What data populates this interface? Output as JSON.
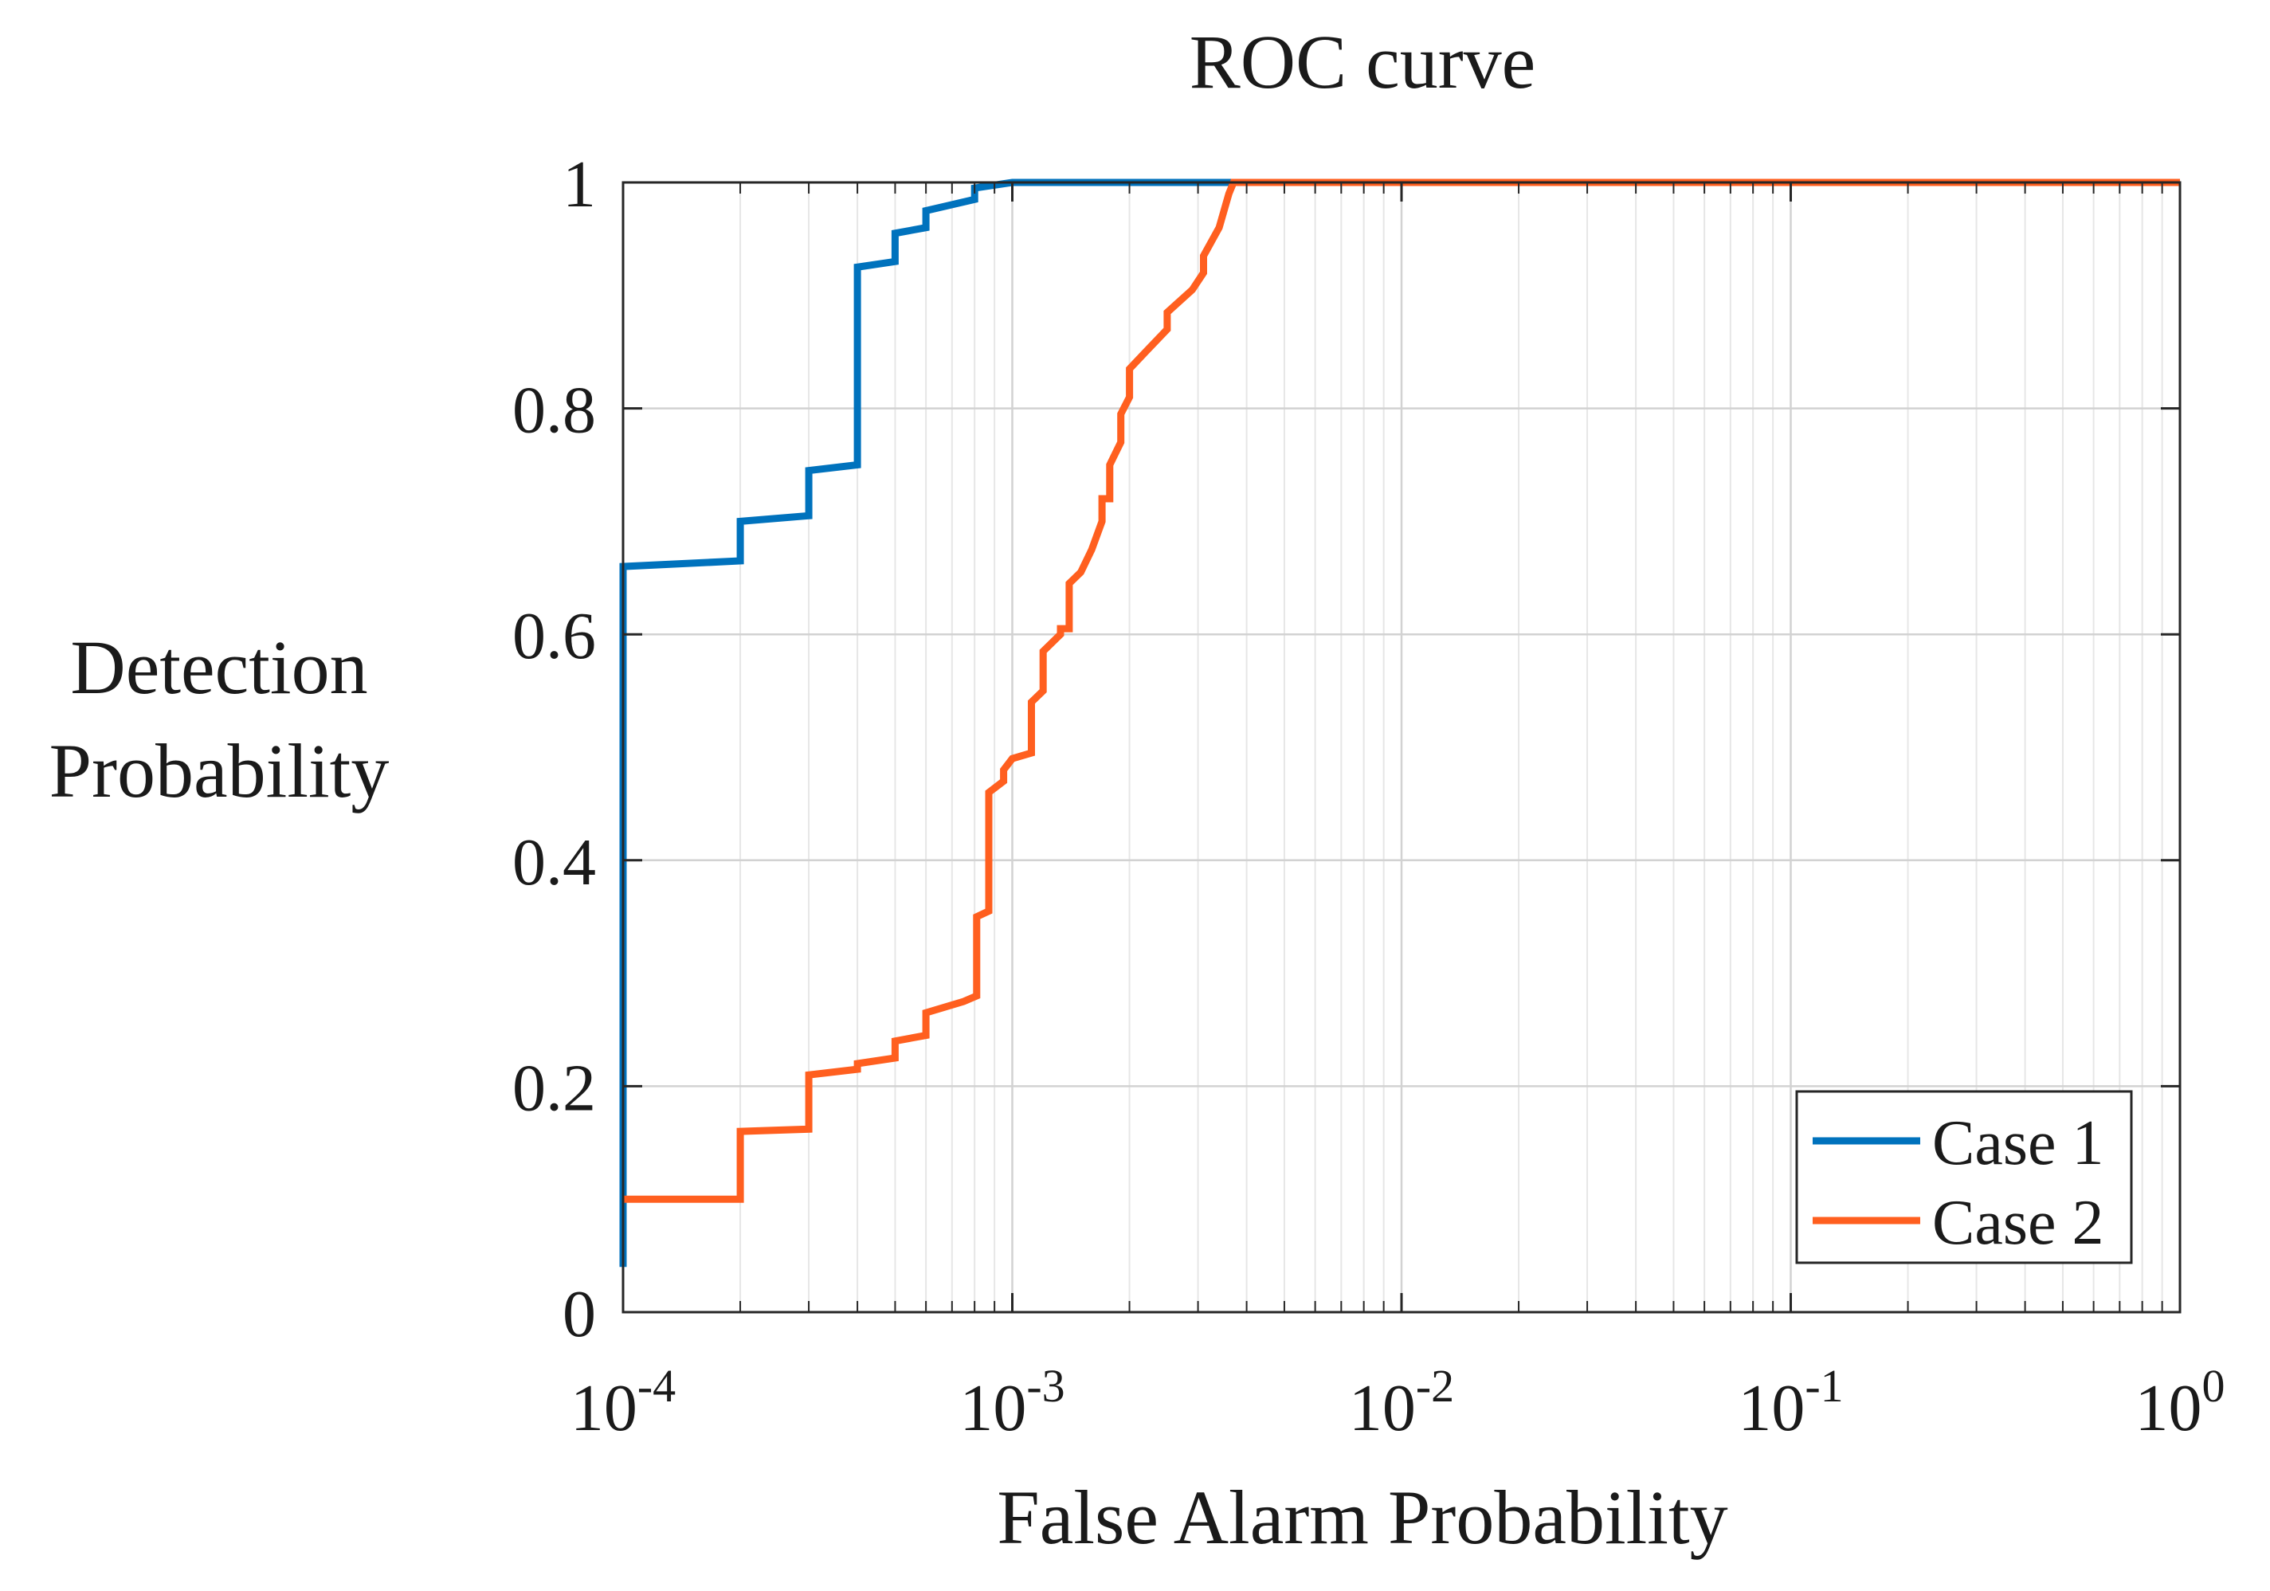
{
  "chart_data": {
    "type": "line",
    "title": "ROC curve",
    "xlabel": "False Alarm Probability",
    "ylabel": [
      "Detection",
      "Probability"
    ],
    "xscale": "log",
    "xlim": [
      0.0001,
      1
    ],
    "ylim": [
      0,
      1
    ],
    "grid": true,
    "legend_position": "bottom-right",
    "x_ticks": [
      {
        "value": 0.0001,
        "base": "10",
        "exp": "-4"
      },
      {
        "value": 0.001,
        "base": "10",
        "exp": "-3"
      },
      {
        "value": 0.01,
        "base": "10",
        "exp": "-2"
      },
      {
        "value": 0.1,
        "base": "10",
        "exp": "-1"
      },
      {
        "value": 1,
        "base": "10",
        "exp": "0"
      }
    ],
    "y_ticks": [
      {
        "value": 0,
        "label": "0"
      },
      {
        "value": 0.2,
        "label": "0.2"
      },
      {
        "value": 0.4,
        "label": "0.4"
      },
      {
        "value": 0.6,
        "label": "0.6"
      },
      {
        "value": 0.8,
        "label": "0.8"
      },
      {
        "value": 1,
        "label": "1"
      }
    ],
    "series": [
      {
        "name": "Case 1",
        "color": "#0072BD",
        "points": [
          [
            0.0001,
            0.04
          ],
          [
            0.0001,
            0.66
          ],
          [
            0.0002,
            0.665
          ],
          [
            0.0002,
            0.7
          ],
          [
            0.0003,
            0.705
          ],
          [
            0.0003,
            0.745
          ],
          [
            0.0004,
            0.75
          ],
          [
            0.0004,
            0.925
          ],
          [
            0.0005,
            0.93
          ],
          [
            0.0005,
            0.955
          ],
          [
            0.0006,
            0.96
          ],
          [
            0.0006,
            0.975
          ],
          [
            0.0008,
            0.985
          ],
          [
            0.0008,
            0.995
          ],
          [
            0.001,
            1.0
          ],
          [
            0.0037,
            1.0
          ]
        ]
      },
      {
        "name": "Case 2",
        "color": "#FF5F1F",
        "points": [
          [
            0.0001,
            0.1
          ],
          [
            0.0002,
            0.1
          ],
          [
            0.0002,
            0.16
          ],
          [
            0.0003,
            0.162
          ],
          [
            0.0003,
            0.21
          ],
          [
            0.0004,
            0.215
          ],
          [
            0.0004,
            0.22
          ],
          [
            0.0005,
            0.225
          ],
          [
            0.0005,
            0.24
          ],
          [
            0.0006,
            0.245
          ],
          [
            0.0006,
            0.265
          ],
          [
            0.00075,
            0.275
          ],
          [
            0.00081,
            0.28
          ],
          [
            0.00081,
            0.35
          ],
          [
            0.00087,
            0.355
          ],
          [
            0.00087,
            0.46
          ],
          [
            0.00095,
            0.47
          ],
          [
            0.00095,
            0.48
          ],
          [
            0.001,
            0.49
          ],
          [
            0.00112,
            0.495
          ],
          [
            0.00112,
            0.54
          ],
          [
            0.0012,
            0.55
          ],
          [
            0.0012,
            0.585
          ],
          [
            0.00133,
            0.6
          ],
          [
            0.00133,
            0.605
          ],
          [
            0.0014,
            0.605
          ],
          [
            0.0014,
            0.645
          ],
          [
            0.0015,
            0.655
          ],
          [
            0.0016,
            0.675
          ],
          [
            0.0017,
            0.7
          ],
          [
            0.0017,
            0.72
          ],
          [
            0.00178,
            0.72
          ],
          [
            0.00178,
            0.75
          ],
          [
            0.0019,
            0.77
          ],
          [
            0.0019,
            0.795
          ],
          [
            0.002,
            0.81
          ],
          [
            0.002,
            0.835
          ],
          [
            0.0022,
            0.85
          ],
          [
            0.0025,
            0.87
          ],
          [
            0.0025,
            0.885
          ],
          [
            0.0029,
            0.905
          ],
          [
            0.0031,
            0.92
          ],
          [
            0.0031,
            0.935
          ],
          [
            0.0034,
            0.96
          ],
          [
            0.0036,
            0.99
          ],
          [
            0.0037,
            1.0
          ],
          [
            1.0,
            1.0
          ]
        ]
      }
    ]
  }
}
